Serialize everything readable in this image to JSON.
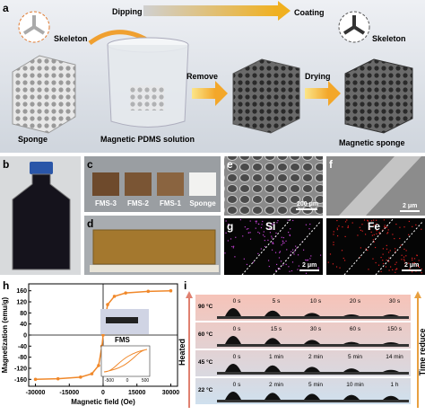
{
  "panels": {
    "a": {
      "label": "a",
      "skeleton_left": "Skeleton",
      "dipping": "Dipping",
      "coating": "Coating",
      "skeleton_right": "Skeleton",
      "sponge": "Sponge",
      "solution": "Magnetic PDMS solution",
      "remove": "Remove",
      "drying": "Drying",
      "magnetic_sponge": "Magnetic sponge"
    },
    "b": {
      "label": "b"
    },
    "c": {
      "label": "c",
      "samples": [
        "FMS-3",
        "FMS-2",
        "FMS-1",
        "Sponge"
      ]
    },
    "d": {
      "label": "d"
    },
    "e": {
      "label": "e",
      "scale": "200 μm"
    },
    "f": {
      "label": "f",
      "scale": "2 μm"
    },
    "g": {
      "label": "g",
      "maps": [
        {
          "element": "Si",
          "scale": "2 μm"
        },
        {
          "element": "Fe",
          "scale": "2 μm"
        }
      ]
    },
    "h": {
      "label": "h",
      "inset_label": "FMS",
      "inset_ticks": [
        "-500",
        "0",
        "500"
      ]
    },
    "i": {
      "label": "i",
      "left_arrow": "Heated",
      "right_arrow": "Time reduce",
      "rows": [
        {
          "temperature": "90 °C",
          "times": [
            "0 s",
            "5 s",
            "10 s",
            "20 s",
            "30 s"
          ]
        },
        {
          "temperature": "60 °C",
          "times": [
            "0 s",
            "15 s",
            "30 s",
            "60 s",
            "150 s"
          ]
        },
        {
          "temperature": "45 °C",
          "times": [
            "0 s",
            "1 min",
            "2 min",
            "5 min",
            "14 min"
          ]
        },
        {
          "temperature": "22 °C",
          "times": [
            "0 s",
            "2 min",
            "5 min",
            "10 min",
            "1 h"
          ]
        }
      ]
    }
  },
  "chart_data": {
    "type": "line",
    "xlabel": "Magnetic field (Oe)",
    "ylabel": "Magnetization (emu/g)",
    "x": [
      -30000,
      -20000,
      -10000,
      -5000,
      -2000,
      -500,
      0,
      500,
      2000,
      5000,
      10000,
      20000,
      30000
    ],
    "series": [
      {
        "color": "#f0882a",
        "values": [
          -160,
          -158,
          -152,
          -140,
          -110,
          -40,
          0,
          40,
          110,
          140,
          152,
          158,
          160
        ]
      }
    ],
    "xlim": [
      -33000,
      33000
    ],
    "xticks": [
      -30000,
      -15000,
      0,
      15000,
      30000
    ],
    "ylim": [
      -185,
      185
    ],
    "yticks": [
      -160,
      -120,
      -80,
      -40,
      0,
      40,
      80,
      120,
      160
    ]
  }
}
